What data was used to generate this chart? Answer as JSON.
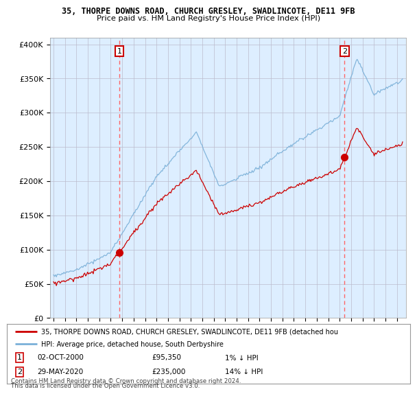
{
  "title1": "35, THORPE DOWNS ROAD, CHURCH GRESLEY, SWADLINCOTE, DE11 9FB",
  "title2": "Price paid vs. HM Land Registry's House Price Index (HPI)",
  "ylabel_ticks": [
    "£0",
    "£50K",
    "£100K",
    "£150K",
    "£200K",
    "£250K",
    "£300K",
    "£350K",
    "£400K"
  ],
  "ytick_values": [
    0,
    50000,
    100000,
    150000,
    200000,
    250000,
    300000,
    350000,
    400000
  ],
  "ylim": [
    0,
    410000
  ],
  "xlim_start": 1994.7,
  "xlim_end": 2025.8,
  "sale1_date": 2000.75,
  "sale1_price": 95350,
  "sale1_label": "1",
  "sale2_date": 2020.42,
  "sale2_price": 235000,
  "sale2_label": "2",
  "hpi_color": "#7ab0d8",
  "price_color": "#CC0000",
  "marker_color": "#CC0000",
  "vline_color": "#FF6666",
  "legend_line1": "35, THORPE DOWNS ROAD, CHURCH GRESLEY, SWADLINCOTE, DE11 9FB (detached hou",
  "legend_line2": "HPI: Average price, detached house, South Derbyshire",
  "table_row1": [
    "1",
    "02-OCT-2000",
    "£95,350",
    "1% ↓ HPI"
  ],
  "table_row2": [
    "2",
    "29-MAY-2020",
    "£235,000",
    "14% ↓ HPI"
  ],
  "footer": "Contains HM Land Registry data © Crown copyright and database right 2024.\nThis data is licensed under the Open Government Licence v3.0.",
  "plot_bg_color": "#ddeeff",
  "background_color": "#FFFFFF",
  "grid_color": "#BBBBCC"
}
